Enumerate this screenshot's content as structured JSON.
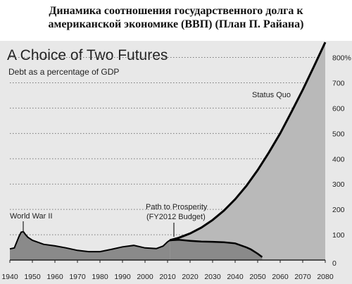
{
  "page_title": {
    "line1": "Динамика соотношения государственного долга к",
    "line2": "американской экономике (ВВП) (План П. Райана)"
  },
  "chart_data": {
    "type": "area",
    "title": "A Choice of Two Futures",
    "subtitle": "Debt as a percentage of GDP",
    "xlim": [
      1940,
      2080
    ],
    "ylim": [
      0,
      860
    ],
    "x_ticks": [
      1940,
      1950,
      1960,
      1970,
      1980,
      1990,
      2000,
      2010,
      2020,
      2030,
      2040,
      2050,
      2060,
      2070,
      2080
    ],
    "y_ticks": [
      0,
      100,
      200,
      300,
      400,
      500,
      600,
      700,
      800
    ],
    "y_tick_labels": [
      "0",
      "100",
      "200",
      "300",
      "400",
      "500",
      "600",
      "700",
      "800%"
    ],
    "grid": "horizontal dotted",
    "historical": {
      "x": [
        1940,
        1942,
        1944,
        1945,
        1946,
        1947,
        1948,
        1950,
        1955,
        1960,
        1965,
        1970,
        1975,
        1980,
        1985,
        1990,
        1995,
        2000,
        2005,
        2008,
        2010,
        2011
      ],
      "values": [
        44,
        48,
        92,
        110,
        112,
        100,
        90,
        78,
        62,
        56,
        48,
        38,
        33,
        33,
        42,
        52,
        58,
        48,
        45,
        55,
        72,
        78
      ]
    },
    "series": [
      {
        "name": "Status Quo",
        "x": [
          2011,
          2015,
          2020,
          2025,
          2030,
          2035,
          2040,
          2045,
          2050,
          2055,
          2060,
          2065,
          2070,
          2075,
          2080
        ],
        "values": [
          78,
          88,
          105,
          128,
          158,
          195,
          240,
          293,
          355,
          425,
          500,
          585,
          672,
          765,
          860
        ]
      },
      {
        "name": "Path to Prosperity (FY2012 Budget)",
        "x": [
          2011,
          2015,
          2020,
          2025,
          2030,
          2035,
          2040,
          2045,
          2047,
          2050,
          2052
        ],
        "values": [
          78,
          80,
          76,
          73,
          72,
          70,
          66,
          50,
          42,
          25,
          12
        ]
      }
    ],
    "annotations": {
      "world_war": "World War II",
      "status_quo": "Status Quo",
      "path_line1": "Path to Prosperity",
      "path_line2": "(FY2012 Budget)"
    },
    "colors": {
      "historical_fill": "#8a8a8a",
      "status_quo_fill": "#b9b9b9",
      "path_fill": "#8a8a8a",
      "line": "#000000",
      "grid": "#777777"
    }
  }
}
